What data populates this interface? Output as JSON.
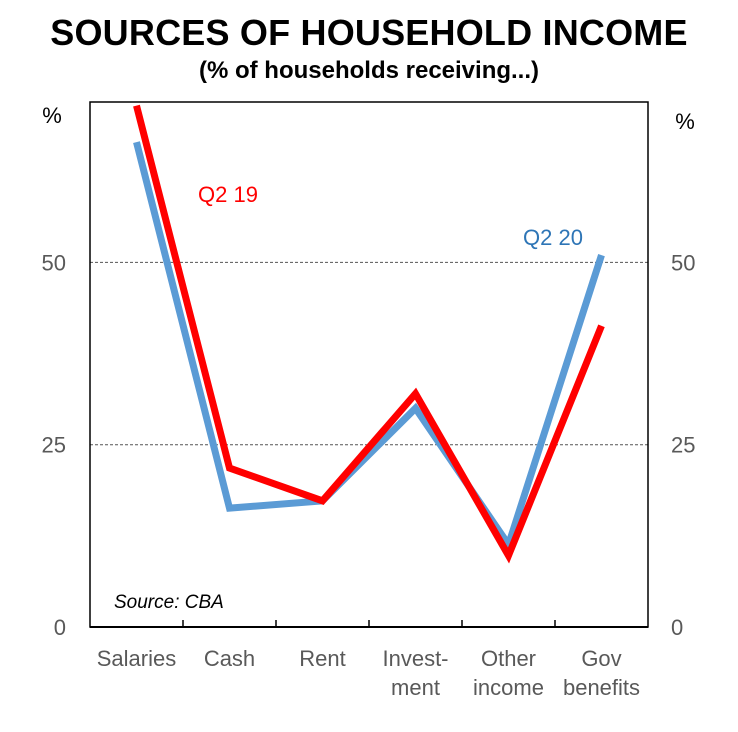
{
  "chart_data": {
    "type": "line",
    "title": "SOURCES OF HOUSEHOLD INCOME",
    "subtitle": "(% of households receiving...)",
    "categories": [
      [
        "Salaries"
      ],
      [
        "Cash"
      ],
      [
        "Rent"
      ],
      [
        "Invest-",
        "ment"
      ],
      [
        "Other",
        "income"
      ],
      [
        "Gov",
        "benefits"
      ]
    ],
    "ylim": [
      0,
      72
    ],
    "yticks": [
      0,
      25,
      50
    ],
    "left_unit": "%",
    "right_unit": "%",
    "gridlines": [
      25,
      50
    ],
    "source": "Source: CBA",
    "series": [
      {
        "name": "Q2 20",
        "color": "#5B9BD5",
        "values": [
          66.5,
          16.3,
          17.3,
          30.0,
          11.3,
          51.0
        ]
      },
      {
        "name": "Q2 19",
        "color": "#FF0000",
        "values": [
          71.5,
          21.8,
          17.3,
          32.0,
          9.8,
          41.3
        ]
      }
    ]
  }
}
